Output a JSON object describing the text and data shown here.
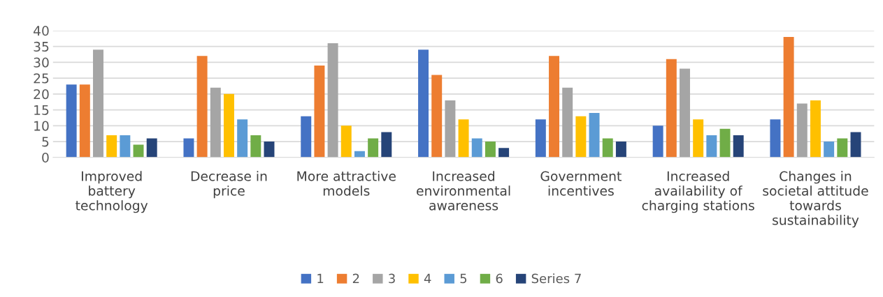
{
  "chart_data": {
    "type": "bar",
    "categories": [
      "Improved\nbattery\ntechnology",
      "Decrease in\nprice",
      "More attractive\nmodels",
      "Increased\nenvironmental\nawareness",
      "Government\nincentives",
      "Increased\navailability of\ncharging stations",
      "Changes in\nsocietal attitude\ntowards\nsustainability"
    ],
    "series": [
      {
        "name": "1",
        "color": "#4472c4",
        "values": [
          23,
          6,
          13,
          34,
          12,
          10,
          12
        ]
      },
      {
        "name": "2",
        "color": "#ed7d31",
        "values": [
          23,
          32,
          29,
          26,
          32,
          31,
          38
        ]
      },
      {
        "name": "3",
        "color": "#a5a5a5",
        "values": [
          34,
          22,
          36,
          18,
          22,
          28,
          17
        ]
      },
      {
        "name": "4",
        "color": "#ffc000",
        "values": [
          7,
          20,
          10,
          12,
          13,
          12,
          18
        ]
      },
      {
        "name": "5",
        "color": "#5b9bd5",
        "values": [
          7,
          12,
          2,
          6,
          14,
          7,
          5
        ]
      },
      {
        "name": "6",
        "color": "#70ad47",
        "values": [
          4,
          7,
          6,
          5,
          6,
          9,
          6
        ]
      },
      {
        "name": "Series 7",
        "color": "#264478",
        "values": [
          6,
          5,
          8,
          3,
          5,
          7,
          8
        ]
      }
    ],
    "ylim": [
      0,
      40
    ],
    "yticks": [
      0,
      5,
      10,
      15,
      20,
      25,
      30,
      35,
      40
    ],
    "grid": "y",
    "legend": "bottom"
  }
}
